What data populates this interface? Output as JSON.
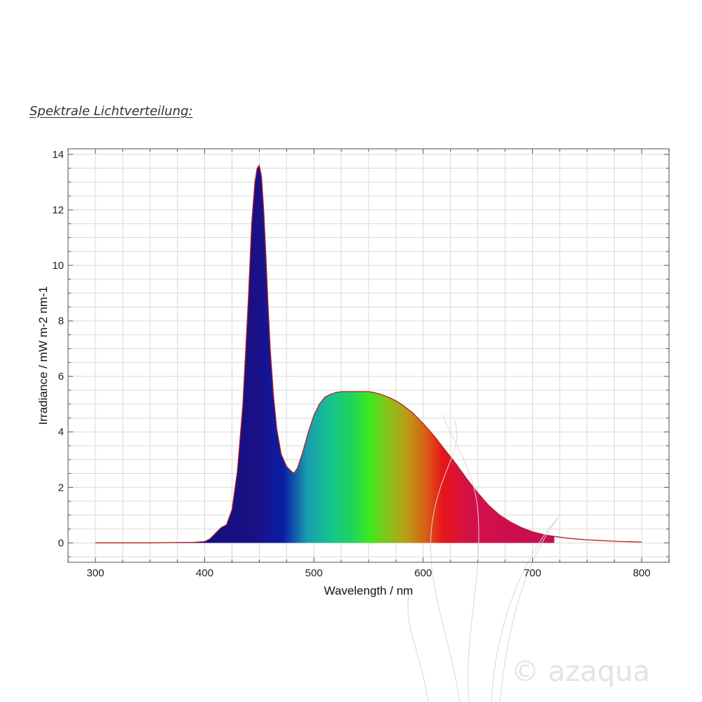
{
  "page": {
    "heading": "Spektrale Lichtverteilung:"
  },
  "chart_data": {
    "type": "area",
    "title": "",
    "xlabel": "Wavelength / nm",
    "ylabel": "Irradiance / mW m-2 nm-1",
    "xlim": [
      275,
      825
    ],
    "ylim": [
      -0.7,
      14.2
    ],
    "xticks": [
      300,
      400,
      500,
      600,
      700,
      800
    ],
    "yticks": [
      0,
      2,
      4,
      6,
      8,
      10,
      12,
      14
    ],
    "grid": true,
    "fill_range_nm": [
      300,
      720
    ],
    "series": [
      {
        "x": [
          300,
          350,
          390,
          400,
          405,
          410,
          415,
          420,
          425,
          430,
          435,
          440,
          443,
          446,
          448,
          450,
          452,
          454,
          456,
          458,
          460,
          463,
          466,
          470,
          475,
          480,
          482,
          485,
          490,
          495,
          500,
          505,
          510,
          515,
          520,
          525,
          530,
          535,
          540,
          545,
          550,
          555,
          560,
          565,
          570,
          575,
          580,
          590,
          600,
          610,
          620,
          630,
          640,
          650,
          660,
          670,
          680,
          690,
          700,
          710,
          720,
          730,
          740,
          750,
          760,
          770,
          780,
          790,
          800
        ],
        "y": [
          0.0,
          0.0,
          0.02,
          0.05,
          0.15,
          0.35,
          0.55,
          0.65,
          1.2,
          2.6,
          5.0,
          8.8,
          11.5,
          13.0,
          13.5,
          13.6,
          13.2,
          12.0,
          10.4,
          8.6,
          7.0,
          5.3,
          4.1,
          3.2,
          2.75,
          2.55,
          2.52,
          2.7,
          3.3,
          4.0,
          4.6,
          5.0,
          5.25,
          5.35,
          5.42,
          5.45,
          5.45,
          5.45,
          5.45,
          5.45,
          5.45,
          5.42,
          5.37,
          5.3,
          5.22,
          5.12,
          5.0,
          4.7,
          4.3,
          3.85,
          3.35,
          2.85,
          2.3,
          1.8,
          1.35,
          1.0,
          0.75,
          0.55,
          0.4,
          0.3,
          0.23,
          0.18,
          0.14,
          0.11,
          0.09,
          0.07,
          0.05,
          0.04,
          0.03
        ]
      }
    ]
  },
  "watermark": {
    "text": "© azaqua"
  },
  "colors": {
    "background": "#ffffff",
    "grid": "#d9d9d9",
    "frame": "#8c8c8c",
    "curve": "#b22222",
    "fill_stops": [
      "#14107d",
      "#1b1086",
      "#0a1ea6",
      "#1a9cb0",
      "#15c48e",
      "#1fd35e",
      "#3de81f",
      "#7dc91a",
      "#b8a016",
      "#d86014",
      "#e8151a",
      "#d2104a",
      "#c90c55"
    ]
  }
}
